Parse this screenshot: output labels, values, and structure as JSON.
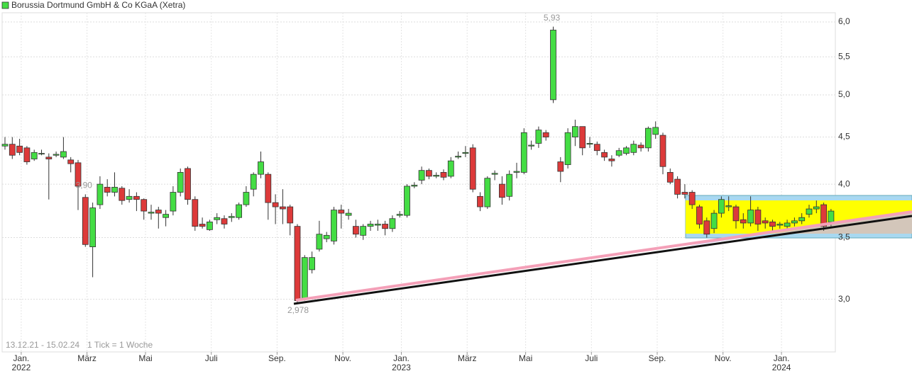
{
  "chart_data": {
    "type": "candlestick",
    "title": "Borussia Dortmund GmbH & Co KGaA (Xetra)",
    "date_range": "13.12.21 - 15.02.24",
    "tick_note": "1 Tick = 1 Woche",
    "log_scale": true,
    "grid": true,
    "up_color": "#44dd44",
    "down_color": "#dd3a3a",
    "categories": [
      null,
      null,
      null,
      "Jan.\n2022",
      null,
      null,
      null,
      null,
      null,
      null,
      null,
      null,
      "März",
      null,
      null,
      null,
      null,
      null,
      null,
      null,
      "Mai",
      null,
      null,
      null,
      null,
      null,
      null,
      null,
      null,
      "Juli",
      null,
      null,
      null,
      null,
      null,
      null,
      null,
      null,
      "Sep.",
      null,
      null,
      null,
      null,
      null,
      null,
      null,
      null,
      "Nov.",
      null,
      null,
      null,
      null,
      null,
      null,
      null,
      "Jan.\n2023",
      null,
      null,
      null,
      null,
      null,
      null,
      null,
      null,
      "März",
      null,
      null,
      null,
      null,
      null,
      null,
      null,
      "Mai",
      null,
      null,
      null,
      null,
      null,
      null,
      null,
      null,
      "Juli",
      null,
      null,
      null,
      null,
      null,
      null,
      null,
      null,
      "Sep.",
      null,
      null,
      null,
      null,
      null,
      null,
      null,
      null,
      "Nov.",
      null,
      null,
      null,
      null,
      null,
      null,
      null,
      "Jan.\n2024",
      null,
      null,
      null,
      null,
      null,
      null
    ],
    "open": [
      4.4,
      4.42,
      4.4,
      4.38,
      4.26,
      4.32,
      4.28,
      4.3,
      4.28,
      4.25,
      4.22,
      3.87,
      3.42,
      3.8,
      3.97,
      3.92,
      3.96,
      3.85,
      3.88,
      3.85,
      3.72,
      3.75,
      3.68,
      3.74,
      3.92,
      4.16,
      3.85,
      3.62,
      3.57,
      3.66,
      3.67,
      3.68,
      3.68,
      3.8,
      3.95,
      4.1,
      4.1,
      3.82,
      3.78,
      3.78,
      3.6,
      3.0,
      3.23,
      3.4,
      3.49,
      3.47,
      3.75,
      3.7,
      3.6,
      3.52,
      3.6,
      3.61,
      3.62,
      3.58,
      3.7,
      3.7,
      3.98,
      4.04,
      4.14,
      4.08,
      4.12,
      4.08,
      4.28,
      4.32,
      4.38,
      3.88,
      3.78,
      4.1,
      4.0,
      3.88,
      4.12,
      4.12,
      4.4,
      4.43,
      4.55,
      4.94,
      4.23,
      4.2,
      4.5,
      4.62,
      4.42,
      4.42,
      4.33,
      4.26,
      4.3,
      4.32,
      4.33,
      4.41,
      4.38,
      4.53,
      4.52,
      4.12,
      4.05,
      3.92,
      3.92,
      3.78,
      3.65,
      3.58,
      3.72,
      3.78,
      3.78,
      3.66,
      3.63,
      3.75,
      3.65,
      3.64,
      3.61,
      3.6,
      3.63,
      3.65,
      3.71,
      3.76,
      3.8,
      3.64
    ],
    "high": [
      4.5,
      4.5,
      4.48,
      4.4,
      4.36,
      4.36,
      4.32,
      4.34,
      4.5,
      4.28,
      4.25,
      3.9,
      3.82,
      4.08,
      4.05,
      4.12,
      3.98,
      3.95,
      3.92,
      3.86,
      3.8,
      3.78,
      3.75,
      3.98,
      4.16,
      4.18,
      3.88,
      3.68,
      3.66,
      3.72,
      3.7,
      3.72,
      3.82,
      3.98,
      4.12,
      4.34,
      4.12,
      3.9,
      3.95,
      3.8,
      3.62,
      3.35,
      3.38,
      3.65,
      3.55,
      3.78,
      3.8,
      3.76,
      3.66,
      3.62,
      3.65,
      3.66,
      3.65,
      3.7,
      3.74,
      4.0,
      4.02,
      4.18,
      4.16,
      4.12,
      4.15,
      4.28,
      4.34,
      4.4,
      4.42,
      3.92,
      4.08,
      4.14,
      4.08,
      4.14,
      4.22,
      4.6,
      4.46,
      4.62,
      4.58,
      5.93,
      4.28,
      4.6,
      4.7,
      4.62,
      4.5,
      4.45,
      4.36,
      4.3,
      4.38,
      4.4,
      4.46,
      4.44,
      4.62,
      4.68,
      4.55,
      4.16,
      4.08,
      4.0,
      3.94,
      3.8,
      3.68,
      3.75,
      3.88,
      3.88,
      3.8,
      3.72,
      3.88,
      3.78,
      3.68,
      3.66,
      3.64,
      3.66,
      3.68,
      3.72,
      3.8,
      3.84,
      3.82,
      3.76
    ],
    "low": [
      4.36,
      4.26,
      4.3,
      4.2,
      4.24,
      4.3,
      3.85,
      4.28,
      4.26,
      4.12,
      3.75,
      3.42,
      3.17,
      3.76,
      3.88,
      3.88,
      3.8,
      3.82,
      3.74,
      3.66,
      3.66,
      3.58,
      3.6,
      3.7,
      3.88,
      3.8,
      3.56,
      3.58,
      3.56,
      3.62,
      3.58,
      3.64,
      3.66,
      3.78,
      3.88,
      4.06,
      3.66,
      3.62,
      3.62,
      3.52,
      2.978,
      2.99,
      3.2,
      3.38,
      3.46,
      3.44,
      3.58,
      3.66,
      3.5,
      3.48,
      3.56,
      3.56,
      3.52,
      3.55,
      3.68,
      3.68,
      3.96,
      4.0,
      4.05,
      4.06,
      4.04,
      4.06,
      4.26,
      4.28,
      3.92,
      3.74,
      3.76,
      4.04,
      3.8,
      3.84,
      4.06,
      4.1,
      4.36,
      4.38,
      4.46,
      4.9,
      4.02,
      4.16,
      4.4,
      4.3,
      4.38,
      4.3,
      4.24,
      4.18,
      4.28,
      4.3,
      4.3,
      4.34,
      4.34,
      4.48,
      4.1,
      4.0,
      3.86,
      3.86,
      3.76,
      3.58,
      3.5,
      3.54,
      3.68,
      3.74,
      3.58,
      3.58,
      3.6,
      3.56,
      3.58,
      3.56,
      3.58,
      3.58,
      3.6,
      3.62,
      3.68,
      3.72,
      3.56,
      3.6
    ],
    "close": [
      4.42,
      4.3,
      4.33,
      4.23,
      4.33,
      4.32,
      4.26,
      4.31,
      4.34,
      4.21,
      3.98,
      3.44,
      3.77,
      4.0,
      3.92,
      3.97,
      3.84,
      3.88,
      3.85,
      3.74,
      3.73,
      3.72,
      3.71,
      3.92,
      4.12,
      3.85,
      3.6,
      3.6,
      3.64,
      3.68,
      3.62,
      3.69,
      3.8,
      3.92,
      4.1,
      4.23,
      3.82,
      3.78,
      3.76,
      3.63,
      2.99,
      3.33,
      3.33,
      3.53,
      3.52,
      3.75,
      3.72,
      3.72,
      3.53,
      3.6,
      3.62,
      3.62,
      3.58,
      3.67,
      3.71,
      3.98,
      3.99,
      4.14,
      4.08,
      4.09,
      4.07,
      4.24,
      4.29,
      4.33,
      3.95,
      3.78,
      4.06,
      4.11,
      3.87,
      4.1,
      4.13,
      4.55,
      4.41,
      4.58,
      4.5,
      5.88,
      4.13,
      4.55,
      4.62,
      4.38,
      4.43,
      4.35,
      4.28,
      4.24,
      4.35,
      4.38,
      4.42,
      4.38,
      4.6,
      4.61,
      4.18,
      4.02,
      3.9,
      3.9,
      3.8,
      3.62,
      3.53,
      3.72,
      3.85,
      3.79,
      3.65,
      3.63,
      3.75,
      3.62,
      3.63,
      3.6,
      3.62,
      3.63,
      3.65,
      3.68,
      3.76,
      3.78,
      3.6,
      3.74
    ],
    "ylim": [
      2.63,
      6.14
    ],
    "yticks": [
      {
        "value": 3.0,
        "label": "3,0"
      },
      {
        "value": 3.5,
        "label": "3,5"
      },
      {
        "value": 4.0,
        "label": "4,0"
      },
      {
        "value": 4.5,
        "label": "4,5"
      },
      {
        "value": 5.0,
        "label": "5,0"
      },
      {
        "value": 5.5,
        "label": "5,5"
      },
      {
        "value": 6.0,
        "label": "6,0"
      }
    ],
    "annotations": [
      {
        "value": 5.93,
        "label": "5,93"
      },
      {
        "value": 2.978,
        "label": "2,978"
      },
      {
        "value": 3.9,
        "label": "3,90"
      }
    ]
  }
}
